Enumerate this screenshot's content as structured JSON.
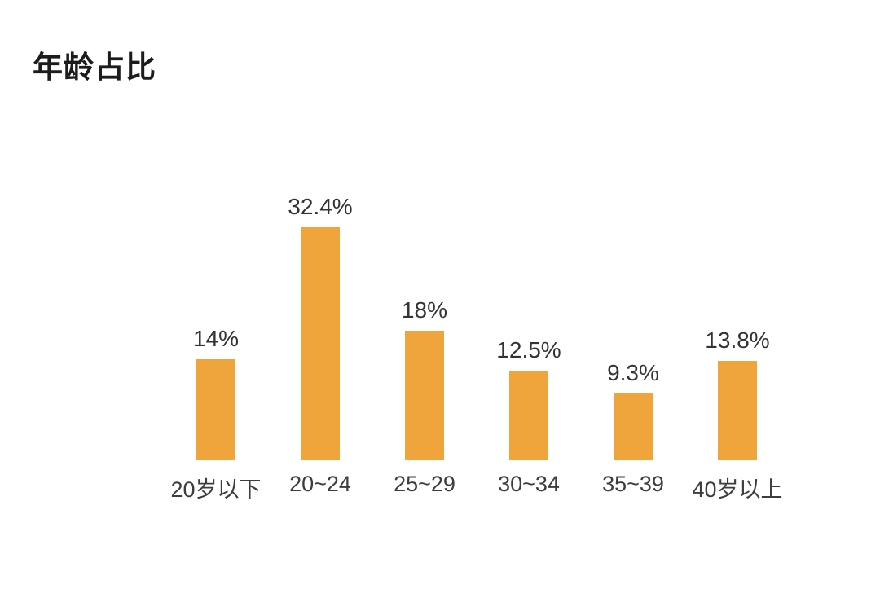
{
  "title": "年龄占比",
  "colors": {
    "background": "#ffffff",
    "bar": "#F0A53C",
    "title_text": "#1c1c1c",
    "value_label_text": "#333333",
    "axis_label_text": "#3d3d3d"
  },
  "chart_data": {
    "type": "bar",
    "title": "年龄占比",
    "categories": [
      "20岁以下",
      "20~24",
      "25~29",
      "30~34",
      "35~39",
      "40岁以上"
    ],
    "values": [
      14,
      32.4,
      18,
      12.5,
      9.3,
      13.8
    ],
    "value_labels": [
      "14%",
      "32.4%",
      "18%",
      "12.5%",
      "9.3%",
      "13.8%"
    ],
    "xlabel": "",
    "ylabel": "",
    "ylim": [
      0,
      35
    ],
    "grid": false,
    "legend_position": "none",
    "axis_lines": false,
    "bar_color": "#F0A53C"
  }
}
